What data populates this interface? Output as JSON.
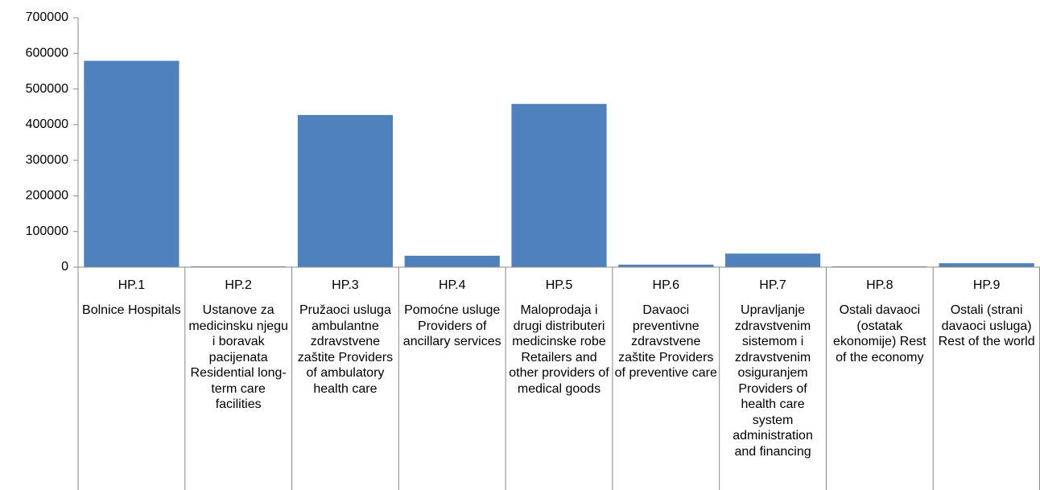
{
  "chart_data": {
    "type": "bar",
    "categories": [
      "HP.1",
      "HP.2",
      "HP.3",
      "HP.4",
      "HP.5",
      "HP.6",
      "HP.7",
      "HP.8",
      "HP.9"
    ],
    "category_descriptions": [
      "Bolnice Hospitals",
      "Ustanove za medicinsku njegu i boravak pacijenata Residential long-term care facilities",
      "Pružaoci usluga ambulantne zdravstvene zaštite Providers of ambulatory health care",
      "Pomoćne usluge Providers of ancillary services",
      "Maloprodaja i drugi distributeri medicinske robe Retailers and other providers of medical goods",
      "Davaoci preventivne zdravstvene zaštite Providers of preventive care",
      "Upravljanje zdravstvenim sistemom i zdravstvenim osiguranjem Providers of health care system administration and financing",
      "Ostali davaoci (ostatak ekonomije) Rest of the economy",
      "Ostali (strani davaoci usluga) Rest of the world"
    ],
    "values": [
      579000,
      2000,
      427000,
      32000,
      458000,
      7000,
      38000,
      2000,
      11000
    ],
    "color": "#4f81bd",
    "ylim": [
      0,
      700000
    ],
    "yticks": [
      0,
      100000,
      200000,
      300000,
      400000,
      500000,
      600000,
      700000
    ],
    "grid": false
  }
}
